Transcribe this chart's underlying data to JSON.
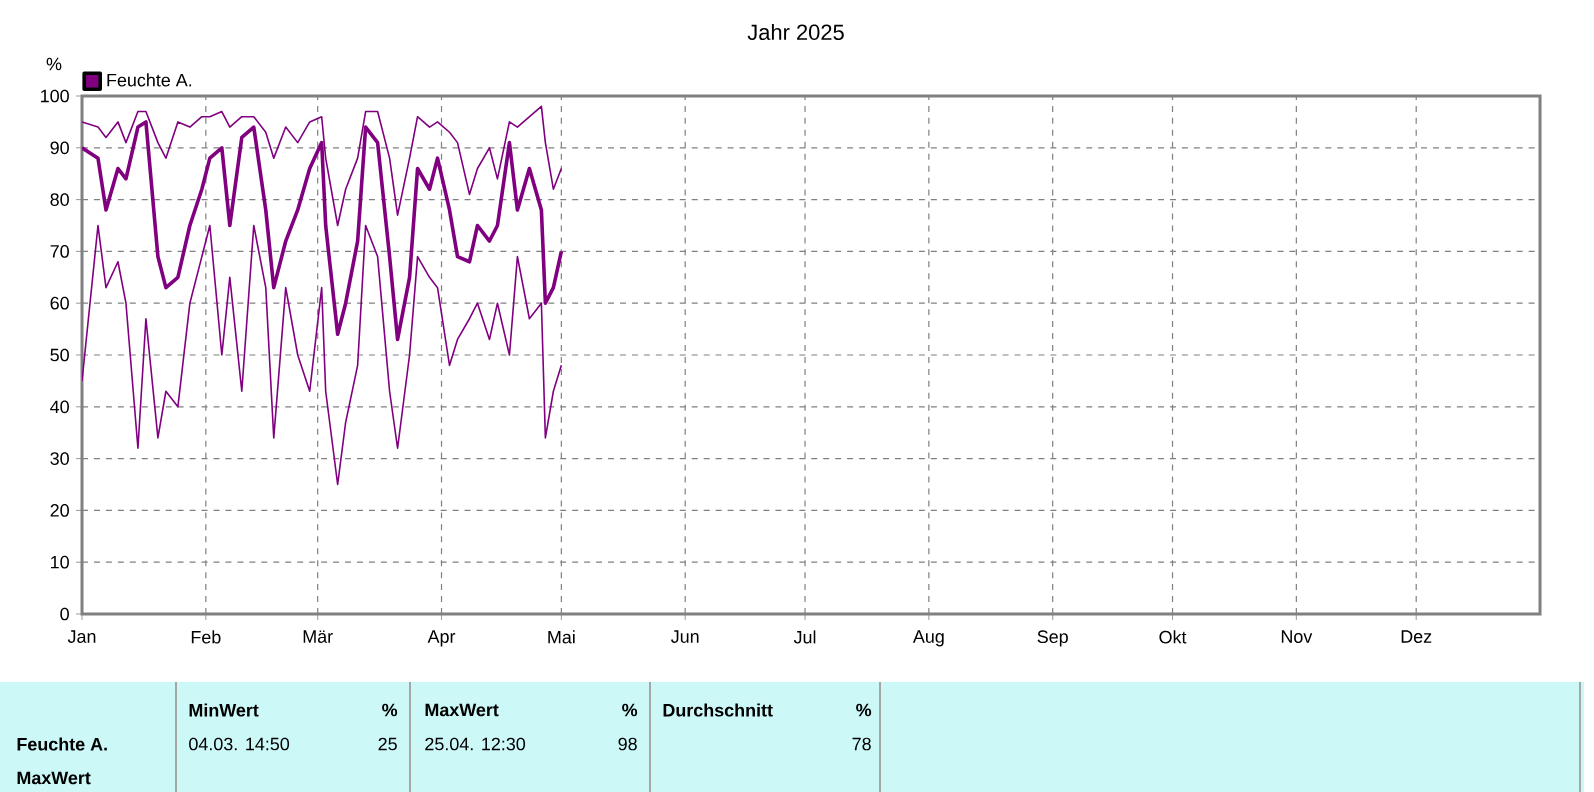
{
  "chart_data": {
    "type": "line",
    "title": "Jahr 2025",
    "ylabel": "%",
    "x": [
      "2025-01-01",
      "2025-01-05",
      "2025-01-07",
      "2025-01-10",
      "2025-01-12",
      "2025-01-15",
      "2025-01-17",
      "2025-01-20",
      "2025-01-22",
      "2025-01-25",
      "2025-01-28",
      "2025-01-31",
      "2025-02-02",
      "2025-02-05",
      "2025-02-07",
      "2025-02-10",
      "2025-02-13",
      "2025-02-16",
      "2025-02-18",
      "2025-02-21",
      "2025-02-24",
      "2025-02-27",
      "2025-03-02",
      "2025-03-03",
      "2025-03-06",
      "2025-03-08",
      "2025-03-11",
      "2025-03-13",
      "2025-03-16",
      "2025-03-19",
      "2025-03-21",
      "2025-03-24",
      "2025-03-26",
      "2025-03-29",
      "2025-03-31",
      "2025-04-03",
      "2025-04-05",
      "2025-04-08",
      "2025-04-10",
      "2025-04-13",
      "2025-04-15",
      "2025-04-18",
      "2025-04-20",
      "2025-04-23",
      "2025-04-26",
      "2025-04-27",
      "2025-04-29",
      "2025-05-01"
    ],
    "series": [
      {
        "color": "#800080",
        "values": [
          95,
          94,
          92,
          95,
          91,
          97,
          97,
          91,
          88,
          95,
          94,
          96,
          96,
          97,
          94,
          96,
          96,
          93,
          88,
          94,
          91,
          95,
          96,
          88,
          75,
          82,
          88,
          97,
          97,
          88,
          77,
          88,
          96,
          94,
          95,
          93,
          91,
          81,
          86,
          90,
          84,
          95,
          94,
          96,
          98,
          91,
          82,
          86
        ]
      },
      {
        "name": "Feuchte A.",
        "color": "#800080",
        "values": [
          90,
          88,
          78,
          86,
          84,
          94,
          95,
          69,
          63,
          65,
          75,
          82,
          88,
          90,
          75,
          92,
          94,
          78,
          63,
          72,
          78,
          86,
          91,
          75,
          54,
          60,
          72,
          94,
          91,
          69,
          53,
          65,
          86,
          82,
          88,
          78,
          69,
          68,
          75,
          72,
          75,
          91,
          78,
          86,
          78,
          60,
          63,
          70
        ]
      },
      {
        "color": "#800080",
        "values": [
          45,
          75,
          63,
          68,
          60,
          32,
          57,
          34,
          43,
          40,
          60,
          69,
          75,
          50,
          65,
          43,
          75,
          63,
          34,
          63,
          50,
          43,
          63,
          43,
          25,
          37,
          48,
          75,
          69,
          43,
          32,
          50,
          69,
          65,
          63,
          48,
          53,
          57,
          60,
          53,
          60,
          50,
          69,
          57,
          60,
          34,
          43,
          48
        ]
      }
    ],
    "xlim": [
      "2025-01-01",
      "2026-01-01"
    ],
    "ylim": [
      0,
      100
    ],
    "xticks": [
      {
        "value": "2025-01-01",
        "label": "Jan"
      },
      {
        "value": "2025-02-01",
        "label": "Feb"
      },
      {
        "value": "2025-03-01",
        "label": "Mär"
      },
      {
        "value": "2025-04-01",
        "label": "Apr"
      },
      {
        "value": "2025-05-01",
        "label": "Mai"
      },
      {
        "value": "2025-06-01",
        "label": "Jun"
      },
      {
        "value": "2025-07-01",
        "label": "Jul"
      },
      {
        "value": "2025-08-01",
        "label": "Aug"
      },
      {
        "value": "2025-09-01",
        "label": "Sep"
      },
      {
        "value": "2025-10-01",
        "label": "Okt"
      },
      {
        "value": "2025-11-01",
        "label": "Nov"
      },
      {
        "value": "2025-12-01",
        "label": "Dez"
      }
    ],
    "yticks": [
      0,
      10,
      20,
      30,
      40,
      50,
      60,
      70,
      80,
      90,
      100
    ],
    "grid": true,
    "legend": "top left",
    "marker": "none",
    "line_style": "solid",
    "annotations": [
      "Feuchte A.",
      "MaxWert",
      "MinWert",
      "%",
      "04.03.  14:50",
      "25",
      "MaxWert",
      "%",
      "25.04.  12:30",
      "98",
      "Durchschnitt",
      "%",
      "78"
    ]
  }
}
